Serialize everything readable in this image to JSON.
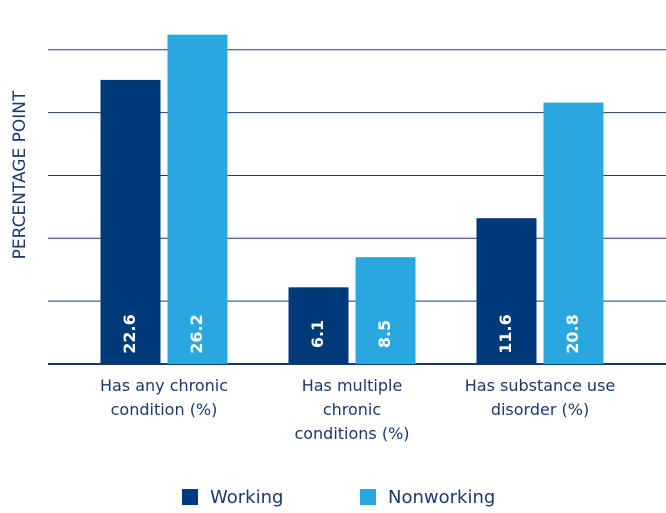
{
  "chart_data": {
    "type": "bar",
    "y_label": "PERCENTAGE POINT",
    "categories": [
      "Has any chronic condition (%)",
      "Has multiple chronic conditions (%)",
      "Has substance use disorder (%)"
    ],
    "series": [
      {
        "name": "Working",
        "color": "#003a7a",
        "values": [
          22.6,
          6.1,
          11.6
        ]
      },
      {
        "name": "Nonworking",
        "color": "#29a8e0",
        "values": [
          26.2,
          8.5,
          20.8
        ]
      }
    ],
    "ylim": [
      0,
      27
    ],
    "yticks": [
      0,
      5,
      10,
      15,
      20,
      25
    ],
    "grid": true
  }
}
